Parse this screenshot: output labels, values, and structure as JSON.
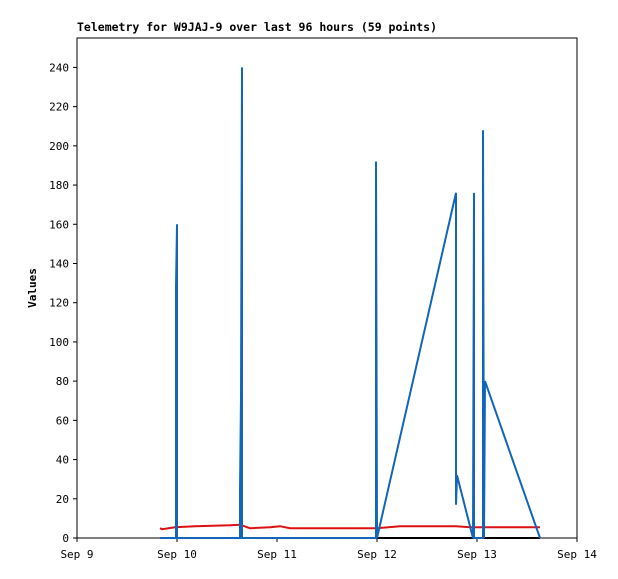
{
  "chart_data": {
    "type": "line",
    "title": "Telemetry for W9JAJ-9 over last 96 hours (59 points)",
    "y_label": "Values",
    "xlim": [
      9,
      14
    ],
    "xticks": [
      {
        "value": 9,
        "label": "Sep 9"
      },
      {
        "value": 10,
        "label": "Sep 10"
      },
      {
        "value": 11,
        "label": "Sep 11"
      },
      {
        "value": 12,
        "label": "Sep 12"
      },
      {
        "value": 13,
        "label": "Sep 13"
      },
      {
        "value": 14,
        "label": "Sep 14"
      }
    ],
    "ylim": [
      0,
      255
    ],
    "yticks": [
      0,
      20,
      40,
      60,
      80,
      100,
      120,
      140,
      160,
      180,
      200,
      220,
      240
    ],
    "grid": false,
    "series": [
      {
        "color": "#000000",
        "x": [
          9.83,
          13.63
        ],
        "values": [
          0,
          0
        ]
      },
      {
        "color": "#dd1111",
        "x": [
          9.83,
          9.85,
          9.98,
          10.18,
          10.53,
          10.63,
          10.73,
          10.93,
          11.03,
          11.13,
          12.0,
          12.23,
          12.79,
          12.93,
          13.63
        ],
        "values": [
          5,
          4.5,
          5.5,
          6,
          6.5,
          6.8,
          5,
          5.5,
          6,
          5,
          5,
          6,
          6,
          5.5,
          5.5
        ]
      },
      {
        "color": "#1166bb",
        "x": [
          9.83,
          9.99,
          9.99,
          10.0,
          10.0,
          10.63,
          10.63,
          10.64,
          10.65,
          10.65,
          11.99,
          11.99,
          12.0,
          12.79,
          12.79,
          12.8,
          12.96,
          12.97,
          12.97,
          13.06,
          13.06,
          13.07,
          13.08,
          13.63
        ],
        "values": [
          0,
          0,
          128,
          160,
          0,
          0,
          24,
          72,
          240,
          0,
          0,
          192,
          0,
          176,
          17,
          32,
          0,
          176,
          0,
          0,
          208,
          0,
          80,
          0
        ]
      }
    ]
  }
}
